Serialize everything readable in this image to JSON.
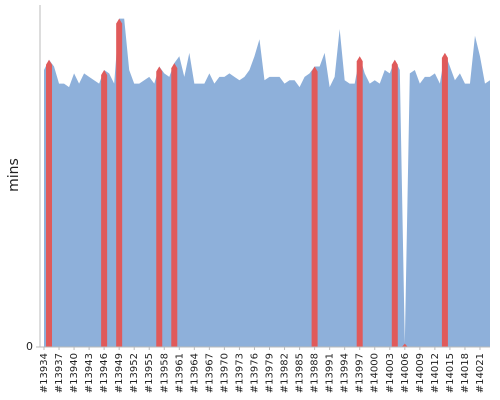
{
  "chart_data": {
    "type": "area",
    "y_label": "mins",
    "categories": [
      "#13934",
      null,
      null,
      "#13937",
      null,
      null,
      "#13940",
      null,
      null,
      "#13943",
      null,
      null,
      "#13946",
      null,
      null,
      "#13949",
      null,
      null,
      "#13952",
      null,
      null,
      "#13955",
      null,
      null,
      "#13958",
      null,
      null,
      "#13961",
      null,
      null,
      "#13964",
      null,
      null,
      "#13967",
      null,
      null,
      "#13970",
      null,
      null,
      "#13973",
      null,
      null,
      "#13976",
      null,
      null,
      "#13979",
      null,
      null,
      "#13982",
      null,
      null,
      "#13985",
      null,
      null,
      "#13988",
      null,
      null,
      "#13991",
      null,
      null,
      "#13994",
      null,
      null,
      "#13997",
      null,
      null,
      "#14000",
      null,
      null,
      "#14003",
      null,
      null,
      "#14006",
      null,
      null,
      "#14009",
      null,
      null,
      "#14012",
      null,
      null,
      "#14015",
      null,
      null,
      "#14018",
      null,
      null,
      "#14021",
      null,
      null
    ],
    "series": [
      {
        "color": "#8eb0da",
        "values": [
          81,
          84,
          82,
          77,
          77,
          76,
          80,
          77,
          80,
          79,
          78,
          77,
          81,
          80,
          77,
          96,
          96,
          81,
          77,
          77,
          78,
          79,
          77,
          82,
          80,
          79,
          83,
          85,
          79,
          86,
          77,
          77,
          77,
          80,
          77,
          79,
          79,
          80,
          79,
          78,
          79,
          81,
          85,
          90,
          78,
          79,
          79,
          79,
          77,
          78,
          78,
          76,
          79,
          80,
          82,
          82,
          86,
          76,
          79,
          93,
          78,
          77,
          77,
          85,
          80,
          77,
          78,
          77,
          81,
          80,
          84,
          81,
          1,
          80,
          81,
          77,
          79,
          79,
          80,
          77,
          86,
          82,
          78,
          80,
          77,
          77,
          91,
          85,
          77,
          78
        ]
      },
      {
        "color": "#e05a5a",
        "values": [
          null,
          84,
          null,
          null,
          null,
          null,
          null,
          null,
          null,
          null,
          null,
          null,
          81,
          null,
          null,
          96,
          null,
          null,
          null,
          null,
          null,
          null,
          null,
          82,
          null,
          null,
          83,
          null,
          null,
          null,
          null,
          null,
          null,
          null,
          null,
          null,
          null,
          null,
          null,
          null,
          null,
          null,
          null,
          null,
          null,
          null,
          null,
          null,
          null,
          null,
          null,
          null,
          null,
          null,
          82,
          null,
          null,
          null,
          null,
          null,
          null,
          null,
          null,
          85,
          null,
          null,
          null,
          null,
          null,
          null,
          84,
          null,
          1,
          null,
          null,
          null,
          null,
          null,
          null,
          null,
          86,
          null,
          null,
          null,
          null,
          null,
          null,
          null,
          null,
          null
        ]
      }
    ],
    "ylim": [
      0,
      100
    ],
    "yticks": [
      0
    ]
  }
}
